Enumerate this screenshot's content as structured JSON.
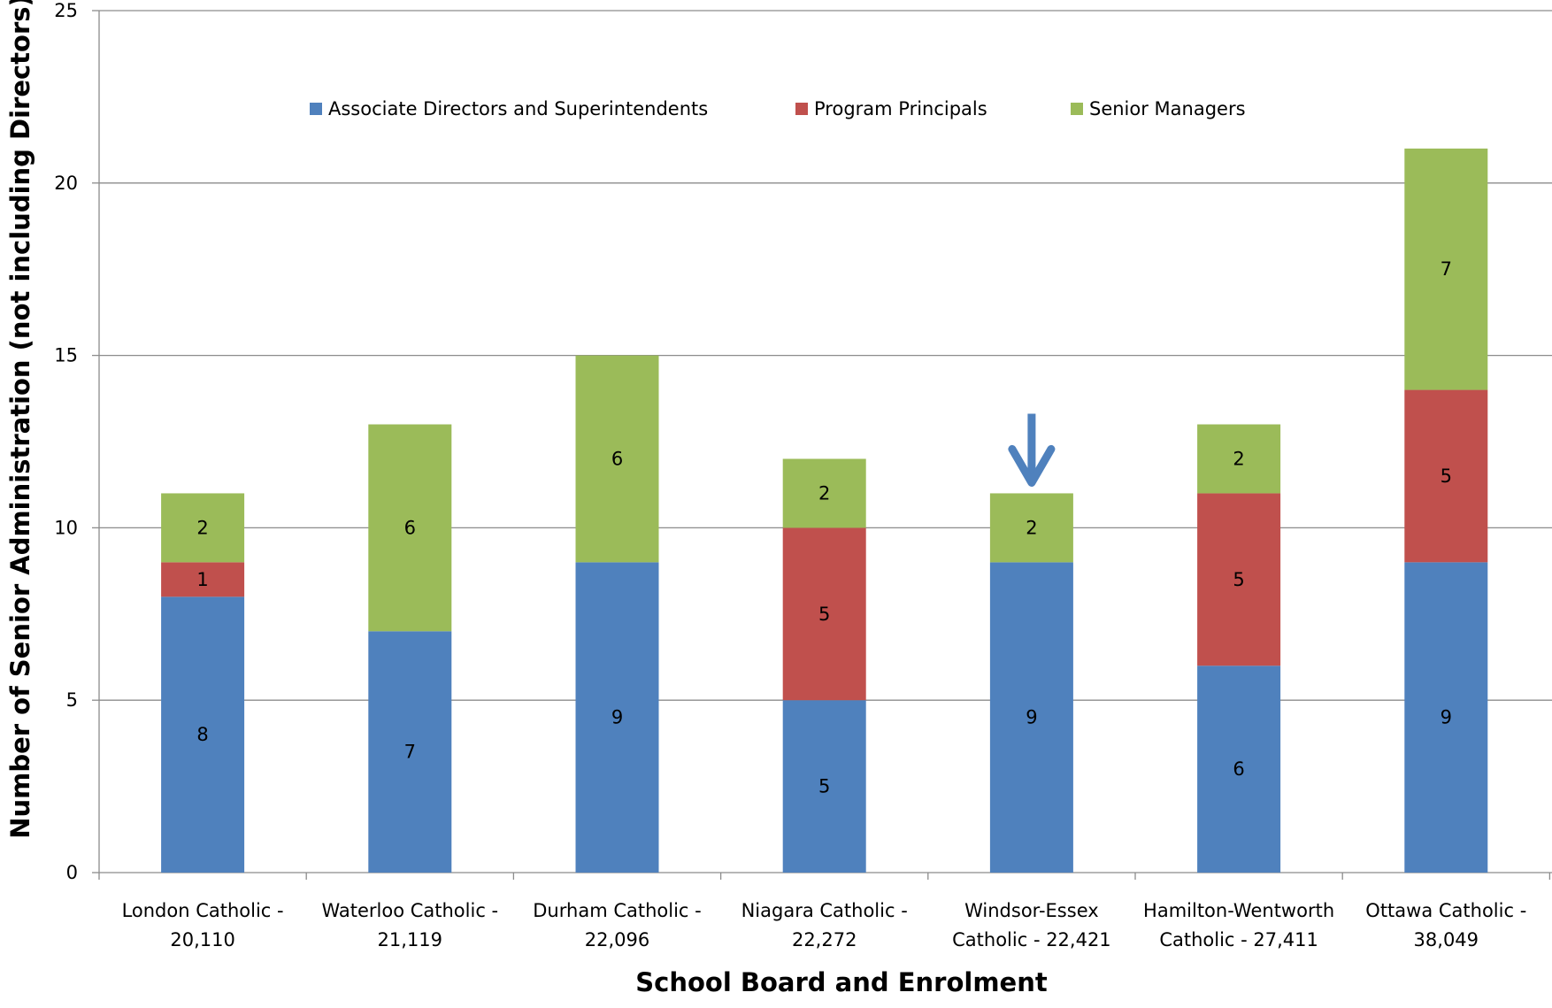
{
  "chart_data": {
    "type": "bar",
    "stacked": true,
    "xlabel": "School Board and Enrolment",
    "ylabel": "Number of Senior Administration (not including Directors)",
    "ylim": [
      0,
      25
    ],
    "yticks": [
      0,
      5,
      10,
      15,
      20,
      25
    ],
    "grid": true,
    "legend_position": "top-center",
    "categories": [
      [
        "London Catholic -",
        "20,110"
      ],
      [
        "Waterloo Catholic -",
        "21,119"
      ],
      [
        "Durham Catholic -",
        "22,096"
      ],
      [
        "Niagara Catholic -",
        "22,272"
      ],
      [
        "Windsor-Essex",
        "Catholic - 22,421"
      ],
      [
        "Hamilton-Wentworth",
        "Catholic - 27,411"
      ],
      [
        "Ottawa Catholic -",
        "38,049"
      ]
    ],
    "series": [
      {
        "name": "Associate Directors and Superintendents",
        "color": "#4F81BD",
        "values": [
          8,
          7,
          9,
          5,
          9,
          6,
          9
        ]
      },
      {
        "name": "Program Principals",
        "color": "#C0504D",
        "values": [
          1,
          0,
          0,
          5,
          0,
          5,
          5
        ]
      },
      {
        "name": "Senior Managers",
        "color": "#9BBB59",
        "values": [
          2,
          6,
          6,
          2,
          2,
          2,
          7
        ]
      }
    ],
    "annotations": [
      {
        "type": "arrow",
        "icon": "down-arrow-icon",
        "category_index": 4,
        "color": "#4F81BD"
      }
    ]
  }
}
